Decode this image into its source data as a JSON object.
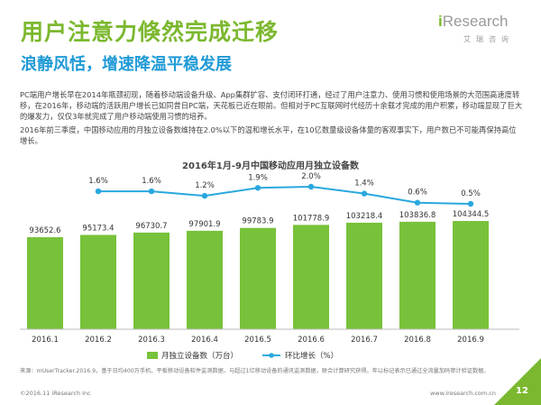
{
  "header": {
    "title": "用户注意力倏然完成迁移",
    "subtitle": "浪静风恬，增速降温平稳发展"
  },
  "logo": {
    "main_i": "i",
    "main_rest": "Research",
    "sub": "艾瑞咨询"
  },
  "body": {
    "paragraph1": "PC端用户增长早在2014年瓶颈初现，随着移动端设备升级、App集群扩容、支付闭环打通，经过了用户注意力、使用习惯和使用场景的大范围高速度转移，在2016年，移动端的活跃用户增长已如同昔日PC端，天花板已近在眼前。但相对于PC互联网时代经历十余载才完成的用户积累，移动端显现了巨大的爆发力，仅仅3年就完成了用户移动端使用习惯的培养。",
    "paragraph2": "2016年前三季度，中国移动应用的月独立设备数维持在2.0%以下的温和增长水平，在10亿数量级设备体量的客观事实下，用户数已不可能再保持高位增长。"
  },
  "chart_data": {
    "type": "bar",
    "title": "2016年1月-9月中国移动应用月独立设备数",
    "categories": [
      "2016.1",
      "2016.2",
      "2016.3",
      "2016.4",
      "2016.5",
      "2016.6",
      "2016.7",
      "2016.8",
      "2016.9"
    ],
    "series": [
      {
        "name": "月独立设备数（万台）",
        "type": "bar",
        "values": [
          93652.6,
          95173.4,
          96730.7,
          97901.9,
          99783.9,
          101778.9,
          103218.4,
          103836.8,
          104344.5
        ],
        "labels": [
          "93652.6",
          "95173.4",
          "96730.7",
          "97901.9",
          "99783.9",
          "101778.9",
          "103218.4",
          "103836.8",
          "104344.5"
        ]
      },
      {
        "name": "环比增长（%）",
        "type": "line",
        "values": [
          null,
          1.6,
          1.6,
          1.2,
          1.9,
          2.0,
          1.4,
          0.6,
          0.5
        ],
        "labels": [
          "",
          "1.6%",
          "1.6%",
          "1.2%",
          "1.9%",
          "2.0%",
          "1.4%",
          "0.6%",
          "0.5%"
        ]
      }
    ],
    "grid": false,
    "legend_position": "bottom",
    "colors": {
      "bar": "#77c23a",
      "line": "#2aa8de",
      "axis": "#bbbbbb"
    }
  },
  "footer": {
    "source": "来源：mUserTracker.2016.9，基于日均400万手机、平板移动设备软件监测数据，与超过1亿移动设备的通讯监测数据，联合计算研究获得。年以标记表示已通过全流量加码审计验证数据。",
    "copyright": "©2016.11 iResearch Inc",
    "website": "www.iresearch.com.cn",
    "page_number": "12"
  }
}
